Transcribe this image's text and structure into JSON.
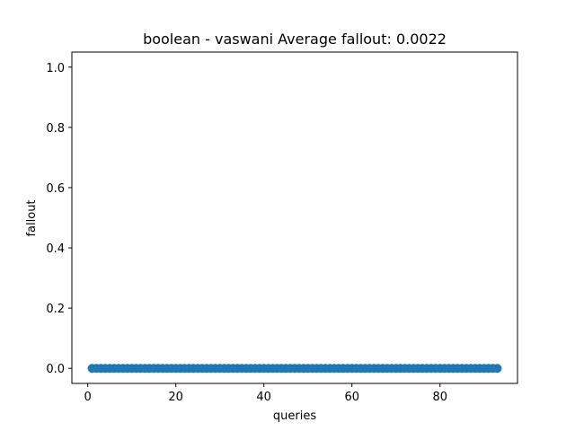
{
  "chart_data": {
    "type": "scatter",
    "title": "boolean - vaswani  Average fallout: 0.0022",
    "xlabel": "queries",
    "ylabel": "fallout",
    "xlim": [
      -3.6,
      97.6
    ],
    "ylim": [
      -0.05,
      1.05
    ],
    "xticks": [
      0,
      20,
      40,
      60,
      80
    ],
    "yticks": [
      0.0,
      0.2,
      0.4,
      0.6,
      0.8,
      1.0
    ],
    "grid": false,
    "marker_color": "#1f77b4",
    "series": [
      {
        "x_start": 1,
        "x_end": 93,
        "values": [
          0,
          0,
          0,
          0,
          0,
          0,
          0,
          0,
          0,
          0,
          0,
          0,
          0,
          0,
          0,
          0,
          0,
          0,
          0,
          0,
          0,
          0,
          0,
          0,
          0,
          0,
          0,
          0,
          0,
          0,
          0,
          0,
          0,
          0,
          0,
          0,
          0,
          0,
          0,
          0,
          0,
          0,
          0,
          0,
          0,
          0,
          0,
          0,
          0,
          0,
          0,
          0,
          0,
          0,
          0,
          0,
          0,
          0,
          0,
          0,
          0,
          0,
          0,
          0,
          0,
          0,
          0,
          0,
          0,
          0,
          0,
          0,
          0,
          0,
          0,
          0,
          0,
          0,
          0,
          0,
          0,
          0,
          0,
          0,
          0,
          0,
          0,
          0,
          0,
          0,
          0,
          0,
          0
        ]
      }
    ]
  }
}
